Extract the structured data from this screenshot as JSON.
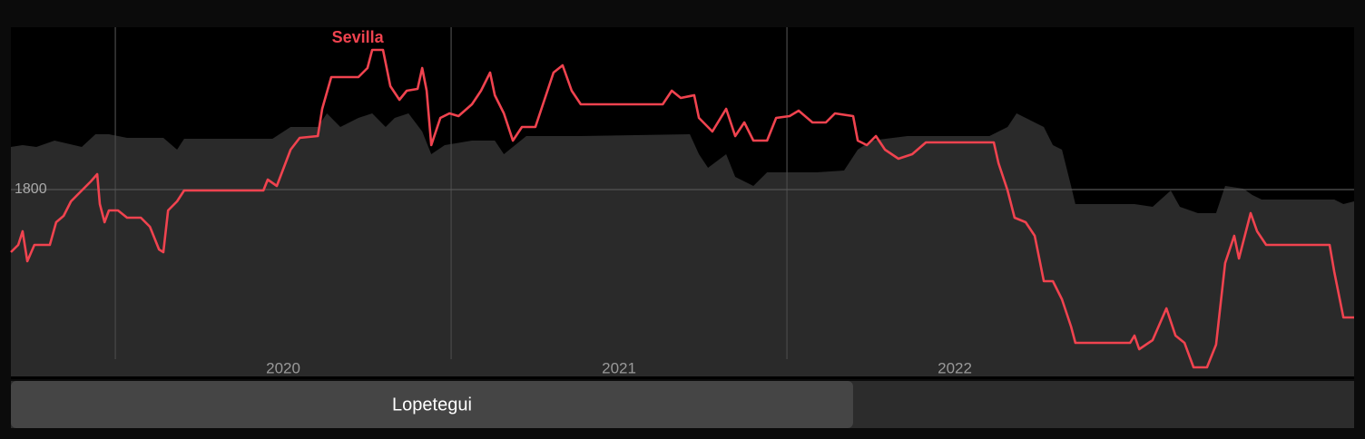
{
  "chart_data": {
    "type": "line",
    "xlim": [
      2019.689,
      2023.689
    ],
    "ylim": [
      1594,
      1979
    ],
    "xticks": [
      2020,
      2021,
      2022
    ],
    "yticks": [
      1800
    ],
    "grid": true,
    "series": [
      {
        "name": "Sevilla",
        "color": "#f0434f",
        "x": [
          2019.689,
          2019.711,
          2019.724,
          2019.738,
          2019.759,
          2019.805,
          2019.824,
          2019.846,
          2019.868,
          2019.9,
          2019.927,
          2019.946,
          2019.954,
          2019.968,
          2019.981,
          2020.008,
          2020.035,
          2020.076,
          2020.103,
          2020.13,
          2020.143,
          2020.157,
          2020.184,
          2020.205,
          2020.441,
          2020.454,
          2020.481,
          2020.522,
          2020.549,
          2020.603,
          2020.616,
          2020.643,
          2020.724,
          2020.751,
          2020.765,
          2020.797,
          2020.819,
          2020.846,
          2020.868,
          2020.9,
          2020.914,
          2020.927,
          2020.941,
          2020.968,
          2020.995,
          2021.022,
          2021.062,
          2021.089,
          2021.116,
          2021.13,
          2021.157,
          2021.184,
          2021.211,
          2021.251,
          2021.278,
          2021.305,
          2021.332,
          2021.359,
          2021.386,
          2021.414,
          2021.63,
          2021.657,
          2021.684,
          2021.724,
          2021.738,
          2021.778,
          2021.819,
          2021.846,
          2021.873,
          2021.9,
          2021.941,
          2021.968,
          2022.008,
          2022.035,
          2022.076,
          2022.116,
          2022.143,
          2022.197,
          2022.211,
          2022.238,
          2022.265,
          2022.292,
          2022.332,
          2022.373,
          2022.414,
          2022.616,
          2022.63,
          2022.657,
          2022.678,
          2022.711,
          2022.738,
          2022.765,
          2022.792,
          2022.819,
          2022.846,
          2022.859,
          2023.022,
          2023.035,
          2023.049,
          2023.089,
          2023.13,
          2023.157,
          2023.184,
          2023.211,
          2023.251,
          2023.278,
          2023.305,
          2023.332,
          2023.346,
          2023.381,
          2023.4,
          2023.427,
          2023.616,
          2023.63,
          2023.657,
          2023.689
        ],
        "values": [
          1731,
          1739,
          1754,
          1721,
          1739,
          1739,
          1764,
          1771,
          1787,
          1799,
          1809,
          1817,
          1784,
          1764,
          1777,
          1777,
          1769,
          1769,
          1759,
          1734,
          1731,
          1777,
          1787,
          1799,
          1799,
          1811,
          1804,
          1844,
          1857,
          1859,
          1889,
          1924,
          1924,
          1934,
          1954,
          1954,
          1914,
          1899,
          1909,
          1911,
          1934,
          1909,
          1849,
          1879,
          1884,
          1881,
          1894,
          1909,
          1929,
          1904,
          1884,
          1854,
          1869,
          1869,
          1899,
          1929,
          1937,
          1909,
          1894,
          1894,
          1894,
          1909,
          1901,
          1904,
          1879,
          1864,
          1889,
          1859,
          1874,
          1854,
          1854,
          1879,
          1881,
          1887,
          1874,
          1874,
          1884,
          1881,
          1854,
          1849,
          1859,
          1844,
          1834,
          1839,
          1852,
          1852,
          1829,
          1799,
          1769,
          1764,
          1749,
          1699,
          1699,
          1679,
          1649,
          1631,
          1631,
          1639,
          1624,
          1634,
          1669,
          1639,
          1631,
          1604,
          1604,
          1629,
          1719,
          1749,
          1724,
          1774,
          1754,
          1739,
          1739,
          1709,
          1659,
          1659
        ]
      },
      {
        "color": "#2a2a2a",
        "x": [
          2019.689,
          2019.724,
          2019.765,
          2019.819,
          2019.9,
          2019.941,
          2019.981,
          2020.035,
          2020.143,
          2020.184,
          2020.205,
          2020.468,
          2020.522,
          2020.603,
          2020.63,
          2020.67,
          2020.724,
          2020.765,
          2020.805,
          2020.832,
          2020.873,
          2020.914,
          2020.941,
          2020.981,
          2021.062,
          2021.13,
          2021.157,
          2021.224,
          2021.305,
          2021.386,
          2021.711,
          2021.738,
          2021.765,
          2021.819,
          2021.846,
          2021.9,
          2021.941,
          2022.089,
          2022.17,
          2022.211,
          2022.251,
          2022.359,
          2022.603,
          2022.657,
          2022.684,
          2022.711,
          2022.765,
          2022.792,
          2022.819,
          2022.846,
          2022.859,
          2023.035,
          2023.089,
          2023.143,
          2023.17,
          2023.224,
          2023.278,
          2023.305,
          2023.359,
          2023.386,
          2023.414,
          2023.63,
          2023.657,
          2023.689
        ],
        "values": [
          1847,
          1849,
          1847,
          1854,
          1847,
          1861,
          1861,
          1857,
          1857,
          1844,
          1856,
          1856,
          1869,
          1869,
          1884,
          1869,
          1879,
          1884,
          1869,
          1879,
          1884,
          1864,
          1839,
          1849,
          1854,
          1854,
          1839,
          1859,
          1859,
          1859,
          1861,
          1839,
          1824,
          1839,
          1814,
          1804,
          1819,
          1819,
          1821,
          1844,
          1854,
          1859,
          1859,
          1869,
          1884,
          1879,
          1869,
          1849,
          1844,
          1804,
          1784,
          1784,
          1781,
          1799,
          1781,
          1774,
          1774,
          1804,
          1801,
          1794,
          1789,
          1789,
          1784,
          1787
        ]
      }
    ],
    "periods": [
      {
        "label": "Lopetegui",
        "start": 2019.689,
        "end": 2022.197
      }
    ]
  }
}
